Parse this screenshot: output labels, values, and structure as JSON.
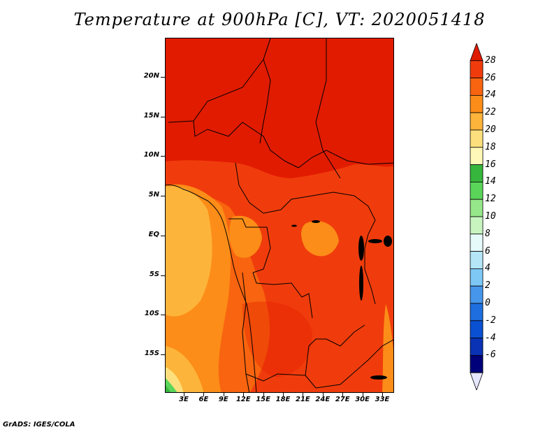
{
  "title": "Temperature at 900hPa [C], VT: 2020051418",
  "footer": "GrADS: IGES/COLA",
  "lat_labels": [
    {
      "text": "20N",
      "lat": 20
    },
    {
      "text": "15N",
      "lat": 15
    },
    {
      "text": "10N",
      "lat": 10
    },
    {
      "text": "5N",
      "lat": 5
    },
    {
      "text": "EQ",
      "lat": 0
    },
    {
      "text": "5S",
      "lat": -5
    },
    {
      "text": "10S",
      "lat": -10
    },
    {
      "text": "15S",
      "lat": -15
    }
  ],
  "lon_labels": [
    {
      "text": "3E",
      "lon": 3
    },
    {
      "text": "6E",
      "lon": 6
    },
    {
      "text": "9E",
      "lon": 9
    },
    {
      "text": "12E",
      "lon": 12
    },
    {
      "text": "15E",
      "lon": 15
    },
    {
      "text": "18E",
      "lon": 18
    },
    {
      "text": "21E",
      "lon": 21
    },
    {
      "text": "24E",
      "lon": 24
    },
    {
      "text": "27E",
      "lon": 27
    },
    {
      "text": "30E",
      "lon": 30
    },
    {
      "text": "33E",
      "lon": 33
    }
  ],
  "colorbar": {
    "labels": [
      "28",
      "26",
      "24",
      "22",
      "20",
      "18",
      "16",
      "14",
      "12",
      "10",
      "8",
      "6",
      "4",
      "2",
      "0",
      "-2",
      "-4",
      "-6"
    ],
    "colors": [
      "#e11b00",
      "#f03c0c",
      "#f8640f",
      "#fc8d18",
      "#fdb43a",
      "#fde07d",
      "#fff8b8",
      "#37b63d",
      "#5ad55a",
      "#96e68a",
      "#c8f4c0",
      "#e6fafa",
      "#b4e6f8",
      "#7dc8f5",
      "#4696ec",
      "#1e6ee0",
      "#0a50d2",
      "#0a32b4",
      "#00007a",
      "#e6e6ff"
    ]
  }
}
